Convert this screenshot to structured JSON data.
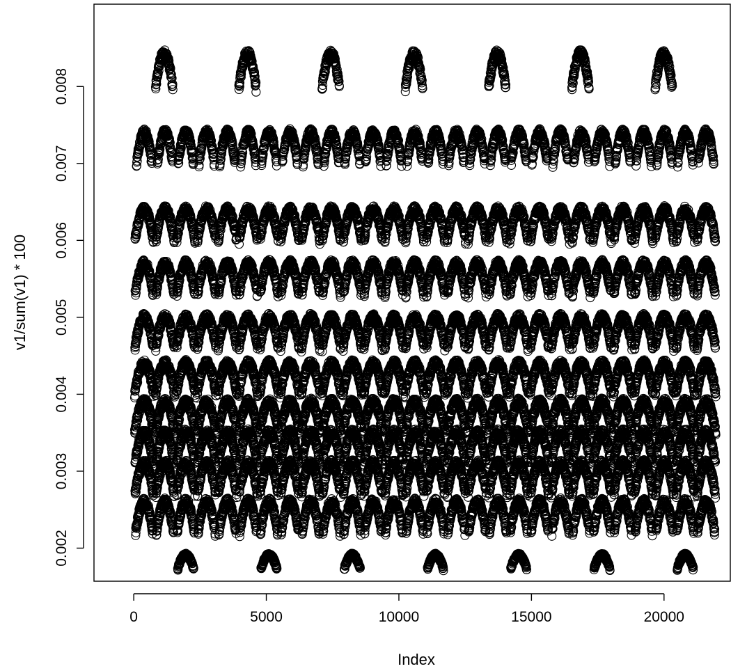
{
  "chart_data": {
    "type": "scatter",
    "title": "",
    "xlabel": "Index",
    "ylabel": "v1/sum(v1) * 100",
    "xlim": [
      -1500,
      22500
    ],
    "ylim": [
      0.00157,
      0.00907
    ],
    "x_ticks": [
      0,
      5000,
      10000,
      15000,
      20000
    ],
    "x_tick_labels": [
      "0",
      "5000",
      "10000",
      "15000",
      "20000"
    ],
    "y_ticks": [
      0.002,
      0.003,
      0.004,
      0.005,
      0.006,
      0.007,
      0.008
    ],
    "y_tick_labels": [
      "0.002",
      "0.003",
      "0.004",
      "0.005",
      "0.006",
      "0.007",
      "0.008"
    ],
    "grid": false,
    "legend": "none",
    "marker": "open-circle",
    "point_color": "#000000",
    "n_points": 22000,
    "bands": [
      {
        "level": 0.0082,
        "period": 3140,
        "offset": 1150,
        "width": 650,
        "amp": 0.00045
      },
      {
        "level": 0.0072,
        "period": 785,
        "offset": 1180,
        "width": 580,
        "amp": 0.0004
      },
      {
        "level": 0.0062,
        "period": 785,
        "offset": 1180,
        "width": 690,
        "amp": 0.0004
      },
      {
        "level": 0.0055,
        "period": 785,
        "offset": 1180,
        "width": 680,
        "amp": 0.0004
      },
      {
        "level": 0.0048,
        "period": 785,
        "offset": 1180,
        "width": 700,
        "amp": 0.0004
      },
      {
        "level": 0.0042,
        "period": 785,
        "offset": 1180,
        "width": 720,
        "amp": 0.0004
      },
      {
        "level": 0.0037,
        "period": 785,
        "offset": 1180,
        "width": 720,
        "amp": 0.0004
      },
      {
        "level": 0.0033,
        "period": 785,
        "offset": 1180,
        "width": 690,
        "amp": 0.0004
      },
      {
        "level": 0.0029,
        "period": 785,
        "offset": 1180,
        "width": 690,
        "amp": 0.0004
      },
      {
        "level": 0.0024,
        "period": 785,
        "offset": 1180,
        "width": 650,
        "amp": 0.0004
      },
      {
        "level": 0.00182,
        "period": 3140,
        "offset": 1960,
        "width": 600,
        "amp": 0.00018
      }
    ]
  }
}
